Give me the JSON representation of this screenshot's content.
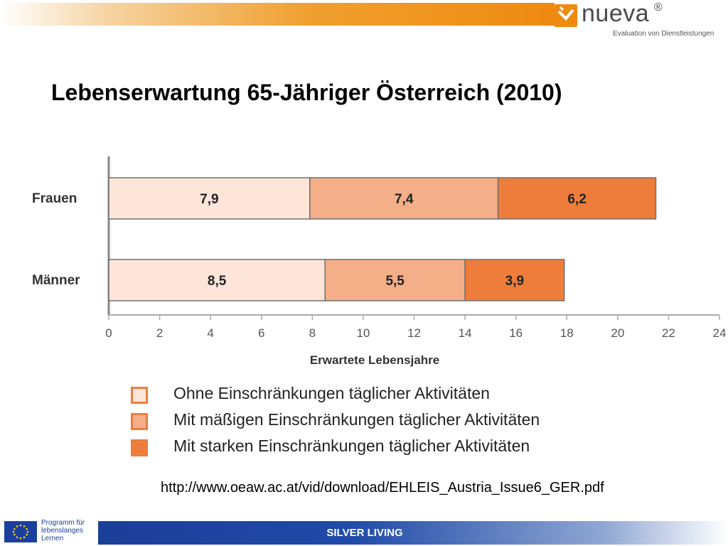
{
  "header": {
    "logo_name": "nueva",
    "logo_reg": "®",
    "logo_sub": "Evaluation von Dienstleistungen"
  },
  "title": "Lebenserwartung 65-Jähriger Österreich (2010)",
  "chart_data": {
    "type": "bar",
    "orientation": "horizontal",
    "stacked": true,
    "categories": [
      "Frauen",
      "Männer"
    ],
    "series": [
      {
        "name": "Ohne Einschränkungen täglicher Aktivitäten",
        "values": [
          7.9,
          8.5
        ],
        "labels": [
          "7,9",
          "8,5"
        ],
        "color": "#fde5d9"
      },
      {
        "name": "Mit mäßigen Einschränkungen täglicher Aktivitäten",
        "values": [
          7.4,
          5.5
        ],
        "labels": [
          "7,4",
          "5,5"
        ],
        "color": "#f4ae88"
      },
      {
        "name": "Mit starken Einschränkungen täglicher Aktivitäten",
        "values": [
          6.2,
          3.9
        ],
        "labels": [
          "6,2",
          "3,9"
        ],
        "color": "#ee7d3b"
      }
    ],
    "xlabel": "Erwartete Lebensjahre",
    "ylabel": "",
    "xlim": [
      0,
      24
    ],
    "xticks": [
      0,
      2,
      4,
      6,
      8,
      10,
      12,
      14,
      16,
      18,
      20,
      22,
      24
    ],
    "grid": false,
    "legend_position": "bottom"
  },
  "source_url": "http://www.oeaw.ac.at/vid/download/EHLEIS_Austria_Issue6_GER.pdf",
  "footer": {
    "program_lines": [
      "Programm für",
      "lebenslanges",
      "Lernen"
    ],
    "bar_title": "SILVER LIVING"
  },
  "colors": {
    "accent_orange": "#ef8a10",
    "footer_blue": "#1c3f99",
    "bar_border": "#707070"
  }
}
